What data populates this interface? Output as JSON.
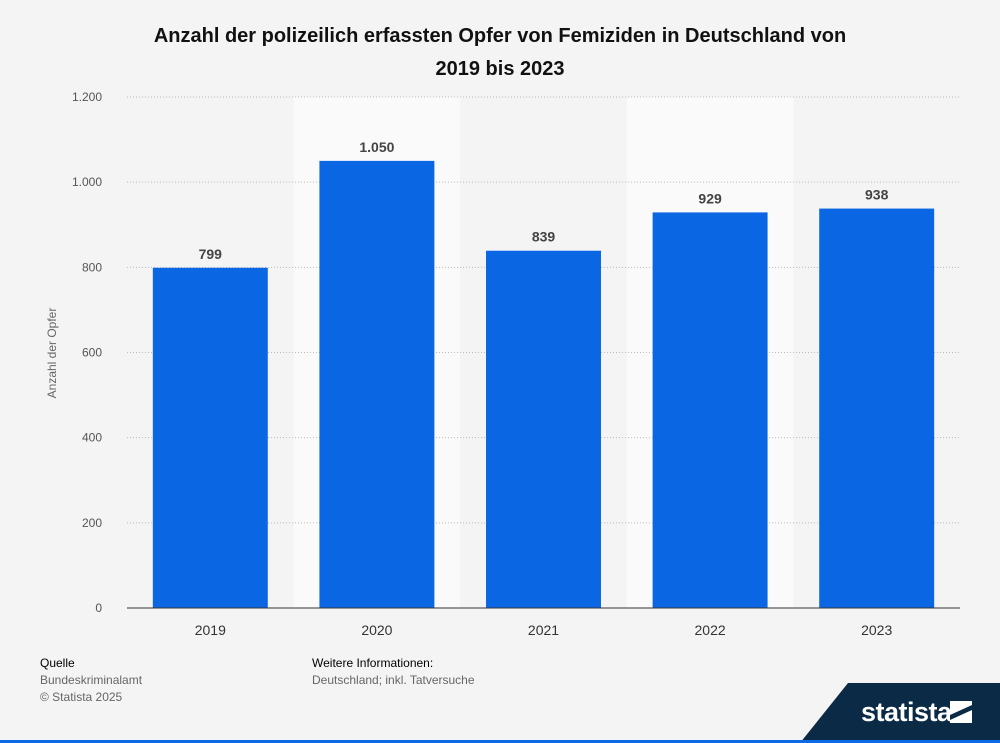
{
  "chart_data": {
    "type": "bar",
    "title": "Anzahl der polizeilich erfassten Opfer von Femiziden in Deutschland von 2019 bis 2023",
    "title_lines": [
      "Anzahl der polizeilich erfassten Opfer von Femiziden in Deutschland von",
      "2019 bis 2023"
    ],
    "xlabel": "",
    "ylabel": "Anzahl der Opfer",
    "categories": [
      "2019",
      "2020",
      "2021",
      "2022",
      "2023"
    ],
    "values": [
      799,
      1050,
      839,
      929,
      938
    ],
    "value_labels": [
      "799",
      "1.050",
      "839",
      "929",
      "938"
    ],
    "ylim": [
      0,
      1200
    ],
    "yticks": [
      0,
      200,
      400,
      600,
      800,
      1000,
      1200
    ],
    "ytick_labels": [
      "0",
      "200",
      "400",
      "600",
      "800",
      "1.000",
      "1.200"
    ],
    "grid": true,
    "bar_color": "#0b66e4",
    "alt_band_color": "#fafafa"
  },
  "footer": {
    "source_heading": "Quelle",
    "source": "Bundeskriminalamt",
    "copyright": "© Statista 2025",
    "info_heading": "Weitere Informationen:",
    "info": "Deutschland; inkl. Tatversuche"
  },
  "brand": {
    "logo_text": "statista",
    "logo_color": "#0b2a45",
    "accent": "#0b6ae6"
  }
}
